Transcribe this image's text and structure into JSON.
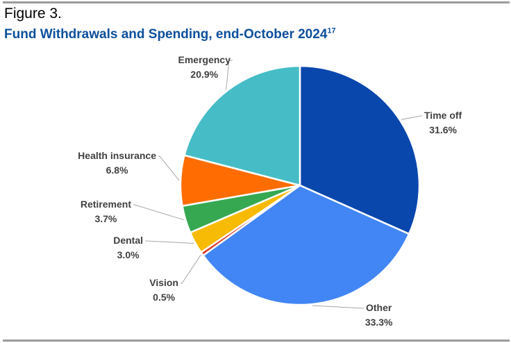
{
  "header": {
    "figure_label": "Figure 3.",
    "title": "Fund Withdrawals and Spending, end-October 2024",
    "footnote_ref": "17"
  },
  "chart_data": {
    "type": "pie",
    "title": "Fund Withdrawals and Spending, end-October 2024",
    "slices": [
      {
        "label": "Time off",
        "value": 31.6,
        "display": "31.6%",
        "color": "#0a47ad"
      },
      {
        "label": "Other",
        "value": 33.3,
        "display": "33.3%",
        "color": "#4186f4"
      },
      {
        "label": "Vision",
        "value": 0.5,
        "display": "0.5%",
        "color": "#d93b2b"
      },
      {
        "label": "Dental",
        "value": 3.0,
        "display": "3.0%",
        "color": "#f7bb06"
      },
      {
        "label": "Retirement",
        "value": 3.7,
        "display": "3.7%",
        "color": "#36a852"
      },
      {
        "label": "Health insurance",
        "value": 6.8,
        "display": "6.8%",
        "color": "#ff6d02"
      },
      {
        "label": "Emergency",
        "value": 20.9,
        "display": "20.9%",
        "color": "#46bdc6"
      }
    ],
    "legend": "none",
    "data_labels": "outside with leader lines"
  }
}
